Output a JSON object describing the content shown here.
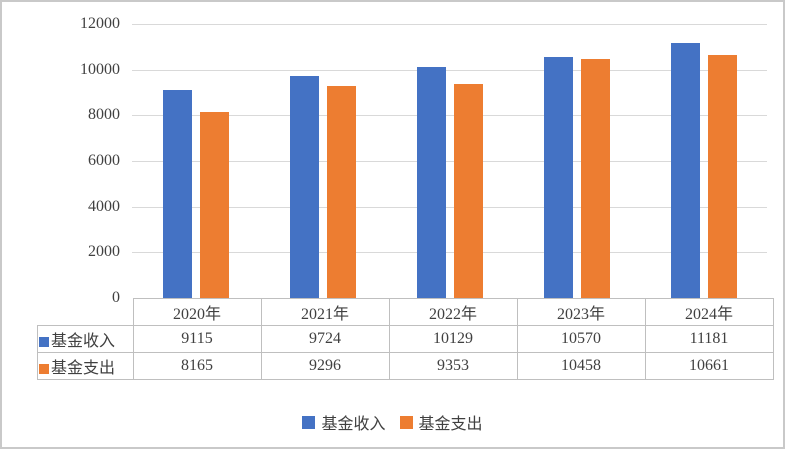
{
  "chart_data": {
    "type": "bar",
    "categories": [
      "2020年",
      "2021年",
      "2022年",
      "2023年",
      "2024年"
    ],
    "series": [
      {
        "name": "基金收入",
        "color": "#4472C4",
        "values": [
          9115,
          9724,
          10129,
          10570,
          11181
        ]
      },
      {
        "name": "基金支出",
        "color": "#ED7D31",
        "values": [
          8165,
          9296,
          9353,
          10458,
          10661
        ]
      }
    ],
    "title": "",
    "xlabel": "",
    "ylabel": "",
    "ylim": [
      0,
      12000
    ],
    "yticks": [
      12000,
      10000,
      8000,
      6000,
      4000,
      2000,
      0
    ],
    "grid": true,
    "legend_position": "bottom",
    "legend_labels": [
      "基金收入",
      "基金支出"
    ]
  },
  "colors": {
    "income": "#4472C4",
    "expense": "#ED7D31",
    "gridline": "#D9D9D9",
    "table_border": "#BFBFBF",
    "text": "#404040",
    "frame_border": "#C9C9C9"
  }
}
